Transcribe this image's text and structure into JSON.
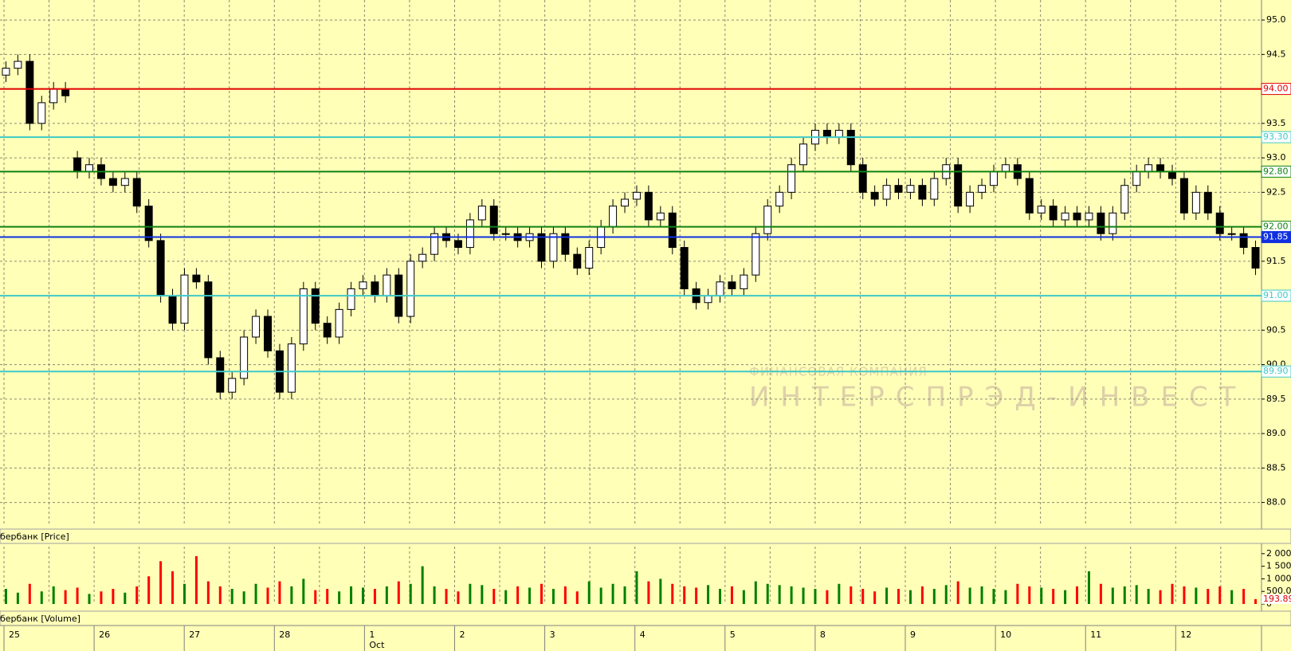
{
  "chart_data": [
    {
      "type": "candlestick",
      "title": "бербанк [Price]",
      "open": [
        94.2,
        94.3,
        94.4,
        93.5,
        93.8,
        94.0,
        93.0,
        92.8,
        92.9,
        92.7,
        92.6,
        92.7,
        92.3,
        91.8,
        91.0,
        90.6,
        91.3,
        91.2,
        90.1,
        89.6,
        89.8,
        90.4,
        90.7,
        90.2,
        89.6,
        90.3,
        91.1,
        90.6,
        90.4,
        90.8,
        91.1,
        91.2,
        91.0,
        91.3,
        90.7,
        91.5,
        91.6,
        91.9,
        91.8,
        91.7,
        92.1,
        92.3,
        91.9,
        91.9,
        91.8,
        91.9,
        91.5,
        91.9,
        91.6,
        91.4,
        91.7,
        92.0,
        92.3,
        92.4,
        92.5,
        92.1,
        92.2,
        91.7,
        91.1,
        90.9,
        91.0,
        91.2,
        91.1,
        91.3,
        91.9,
        92.3,
        92.5,
        92.9,
        93.2,
        93.4,
        93.3,
        93.4,
        92.9,
        92.5,
        92.4,
        92.6,
        92.5,
        92.6,
        92.4,
        92.7,
        92.9,
        92.3,
        92.5,
        92.6,
        92.8,
        92.9,
        92.7,
        92.2,
        92.3,
        92.1,
        92.2,
        92.1,
        92.2,
        91.9,
        92.2,
        92.6,
        92.8,
        92.9,
        92.8,
        92.7,
        92.2,
        92.5,
        92.2,
        91.9,
        91.9,
        91.7
      ],
      "high": [
        94.4,
        94.5,
        94.5,
        93.9,
        94.1,
        94.1,
        93.1,
        93.0,
        93.0,
        92.8,
        92.8,
        92.8,
        92.4,
        91.9,
        91.1,
        91.4,
        91.4,
        91.3,
        90.2,
        89.9,
        90.5,
        90.8,
        90.8,
        90.3,
        90.4,
        91.2,
        91.2,
        90.7,
        90.9,
        91.2,
        91.3,
        91.3,
        91.4,
        91.4,
        91.6,
        91.7,
        92.0,
        92.0,
        91.9,
        92.2,
        92.4,
        92.4,
        92.0,
        92.0,
        92.0,
        92.0,
        92.0,
        92.0,
        91.7,
        91.8,
        92.1,
        92.4,
        92.5,
        92.6,
        92.6,
        92.3,
        92.3,
        91.8,
        91.2,
        91.1,
        91.3,
        91.3,
        91.4,
        92.0,
        92.4,
        92.6,
        93.0,
        93.3,
        93.5,
        93.5,
        93.5,
        93.5,
        93.0,
        92.6,
        92.7,
        92.7,
        92.7,
        92.7,
        92.8,
        93.0,
        93.0,
        92.6,
        92.7,
        92.9,
        93.0,
        93.0,
        92.8,
        92.4,
        92.4,
        92.3,
        92.3,
        92.3,
        92.3,
        92.3,
        92.7,
        92.9,
        93.0,
        93.0,
        92.9,
        92.8,
        92.6,
        92.6,
        92.3,
        92.0,
        92.0,
        91.8
      ],
      "low": [
        94.1,
        94.2,
        93.4,
        93.4,
        93.7,
        93.8,
        92.7,
        92.7,
        92.6,
        92.5,
        92.5,
        92.2,
        91.7,
        90.9,
        90.5,
        90.5,
        91.1,
        90.0,
        89.5,
        89.5,
        89.7,
        90.3,
        90.1,
        89.5,
        89.5,
        90.2,
        90.5,
        90.3,
        90.3,
        90.7,
        91.0,
        90.9,
        90.9,
        90.6,
        90.6,
        91.4,
        91.5,
        91.7,
        91.6,
        91.6,
        92.0,
        91.8,
        91.8,
        91.7,
        91.7,
        91.4,
        91.4,
        91.5,
        91.3,
        91.3,
        91.6,
        91.9,
        92.2,
        92.3,
        92.0,
        92.0,
        91.6,
        91.0,
        90.8,
        90.8,
        90.9,
        91.0,
        91.0,
        91.2,
        91.8,
        92.2,
        92.4,
        92.8,
        93.1,
        93.2,
        93.2,
        92.8,
        92.4,
        92.3,
        92.3,
        92.4,
        92.4,
        92.3,
        92.3,
        92.6,
        92.2,
        92.2,
        92.4,
        92.5,
        92.7,
        92.6,
        92.1,
        92.1,
        92.0,
        92.0,
        92.0,
        92.0,
        91.8,
        91.8,
        92.1,
        92.5,
        92.7,
        92.7,
        92.6,
        92.1,
        92.1,
        92.1,
        91.8,
        91.8,
        91.6,
        91.3
      ],
      "close": [
        94.3,
        94.4,
        93.5,
        93.8,
        94.0,
        93.9,
        92.8,
        92.9,
        92.7,
        92.6,
        92.7,
        92.3,
        91.8,
        91.0,
        90.6,
        91.3,
        91.2,
        90.1,
        89.6,
        89.8,
        90.4,
        90.7,
        90.2,
        89.6,
        90.3,
        91.1,
        90.6,
        90.4,
        90.8,
        91.1,
        91.2,
        91.0,
        91.3,
        90.7,
        91.5,
        91.6,
        91.9,
        91.8,
        91.7,
        92.1,
        92.3,
        91.9,
        91.9,
        91.8,
        91.9,
        91.5,
        91.9,
        91.6,
        91.4,
        91.7,
        92.0,
        92.3,
        92.4,
        92.5,
        92.1,
        92.2,
        91.7,
        91.1,
        90.9,
        91.0,
        91.2,
        91.1,
        91.3,
        91.9,
        92.3,
        92.5,
        92.9,
        93.2,
        93.4,
        93.3,
        93.4,
        92.9,
        92.5,
        92.4,
        92.6,
        92.5,
        92.6,
        92.4,
        92.7,
        92.9,
        92.3,
        92.5,
        92.6,
        92.8,
        92.9,
        92.7,
        92.2,
        92.3,
        92.1,
        92.2,
        92.1,
        92.2,
        91.9,
        92.2,
        92.6,
        92.8,
        92.9,
        92.8,
        92.7,
        92.2,
        92.5,
        92.2,
        91.9,
        91.9,
        91.7,
        91.4
      ],
      "up_color": "#ffffff",
      "down_color": "#000000",
      "ylim": [
        87.66,
        95.29
      ],
      "yticks": [
        {
          "value": 95,
          "label": "95.0"
        },
        {
          "value": 94.5,
          "label": "94.5"
        },
        {
          "value": 94,
          "label": "94.0"
        },
        {
          "value": 93.5,
          "label": "93.5"
        },
        {
          "value": 93,
          "label": "93.0"
        },
        {
          "value": 92.5,
          "label": "92.5"
        },
        {
          "value": 92,
          "label": "92.0"
        },
        {
          "value": 91.5,
          "label": "91.5"
        },
        {
          "value": 91,
          "label": "91.0"
        },
        {
          "value": 90.5,
          "label": "90.5"
        },
        {
          "value": 90,
          "label": "90.0"
        },
        {
          "value": 89.5,
          "label": "89.5"
        },
        {
          "value": 89,
          "label": "89.0"
        },
        {
          "value": 88.5,
          "label": "88.5"
        },
        {
          "value": 88,
          "label": "88.0"
        }
      ],
      "grid": true,
      "levels": [
        {
          "value": 94.0,
          "label": "94.00",
          "color": "#e00000"
        },
        {
          "value": 93.3,
          "label": "93.30",
          "color": "#40c8c8"
        },
        {
          "value": 92.8,
          "label": "92.80",
          "color": "#108010"
        },
        {
          "value": 92.0,
          "label": "92.00",
          "color": "#108010"
        },
        {
          "value": 91.85,
          "label": "91.85",
          "color": "#1030e0"
        },
        {
          "value": 91.0,
          "label": "91.00",
          "color": "#40c8c8"
        },
        {
          "value": 89.9,
          "label": "89.90",
          "color": "#40c8c8"
        }
      ]
    },
    {
      "type": "bar",
      "title": "бербанк [Volume]",
      "values": [
        600,
        450,
        800,
        500,
        700,
        550,
        650,
        400,
        500,
        600,
        450,
        700,
        1100,
        1700,
        1300,
        800,
        1900,
        900,
        700,
        600,
        500,
        800,
        650,
        900,
        700,
        1000,
        550,
        600,
        500,
        700,
        650,
        600,
        700,
        900,
        800,
        1500,
        700,
        600,
        500,
        800,
        750,
        600,
        550,
        700,
        650,
        800,
        600,
        700,
        500,
        900,
        650,
        800,
        700,
        1300,
        900,
        1000,
        800,
        700,
        650,
        750,
        600,
        700,
        550,
        900,
        800,
        750,
        700,
        650,
        600,
        550,
        800,
        700,
        600,
        500,
        650,
        600,
        550,
        700,
        600,
        750,
        900,
        650,
        700,
        600,
        550,
        800,
        700,
        650,
        600,
        550,
        700,
        1300,
        800,
        650,
        700,
        750,
        600,
        550,
        800,
        700,
        650,
        600,
        700,
        550,
        600,
        193.89
      ],
      "up_color": "#008000",
      "down_color": "#ff0000",
      "ylim": [
        0,
        2280
      ],
      "yticks": [
        {
          "value": 2000,
          "label": "2 000"
        },
        {
          "value": 1500,
          "label": "1 500"
        },
        {
          "value": 1000,
          "label": "1 000"
        },
        {
          "value": 500,
          "label": "500.00"
        },
        0
      ],
      "last_value": {
        "value": 193.89,
        "label": "193.89"
      }
    }
  ],
  "time_axis": {
    "days": [
      "25",
      "26",
      "27",
      "28",
      "1",
      "2",
      "3",
      "4",
      "5",
      "8",
      "9",
      "10",
      "11",
      "12"
    ],
    "month": "Oct"
  },
  "watermark": {
    "line1": "ФИНАНСОВАЯ КОМПАНИЯ",
    "line2": "ИНТЕРСПРЭД-ИНВЕСТ"
  }
}
